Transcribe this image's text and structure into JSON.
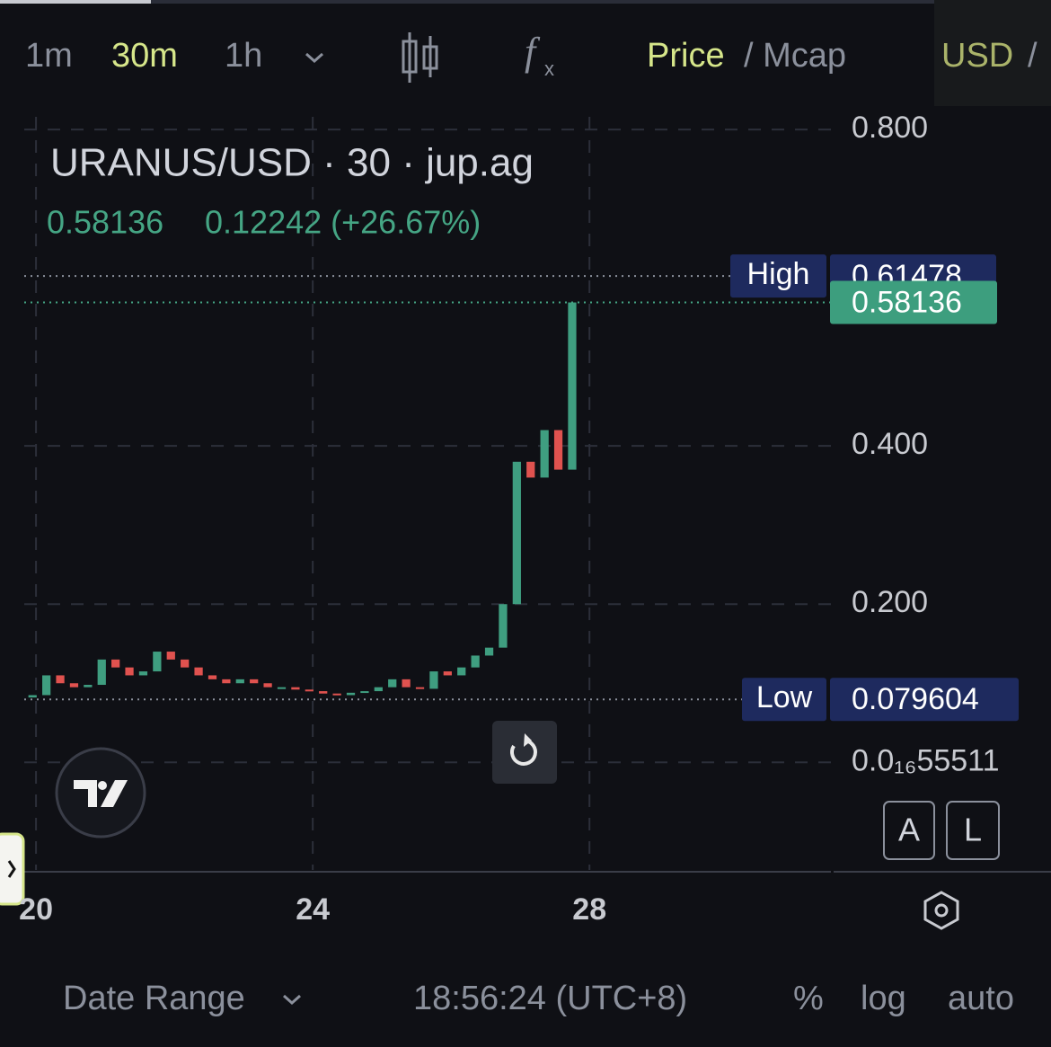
{
  "toolbar": {
    "intervals": [
      "1m",
      "30m",
      "1h"
    ],
    "price": "Price",
    "mcap": "/ Mcap",
    "currency": "USD",
    "sep": "/"
  },
  "legend": {
    "title": "URANUS/USD · 30 · jup.ag",
    "last": "0.58136",
    "change": "0.12242 (+26.67%)"
  },
  "chart_data": {
    "type": "candlestick",
    "up_color": "#3f9e80",
    "down_color": "#e0524f",
    "x": [
      19.95,
      20.15,
      20.35,
      20.55,
      20.75,
      20.95,
      21.15,
      21.35,
      21.55,
      21.75,
      21.95,
      22.15,
      22.35,
      22.55,
      22.75,
      22.95,
      23.15,
      23.35,
      23.55,
      23.75,
      23.95,
      24.15,
      24.35,
      24.55,
      24.75,
      24.95,
      25.15,
      25.35,
      25.55,
      25.75,
      25.95,
      26.15,
      26.35,
      26.55,
      26.75,
      26.95,
      27.15,
      27.35,
      27.55,
      27.75
    ],
    "open": [
      0.082,
      0.085,
      0.11,
      0.1,
      0.095,
      0.098,
      0.13,
      0.12,
      0.11,
      0.115,
      0.14,
      0.13,
      0.12,
      0.11,
      0.105,
      0.1,
      0.105,
      0.1,
      0.095,
      0.095,
      0.092,
      0.09,
      0.087,
      0.085,
      0.088,
      0.09,
      0.095,
      0.105,
      0.095,
      0.093,
      0.115,
      0.11,
      0.12,
      0.135,
      0.145,
      0.2,
      0.38,
      0.36,
      0.42,
      0.37
    ],
    "high": {
      "label": "High",
      "value": 0.61478
    },
    "low": {
      "label": "Low",
      "value": 0.079604
    },
    "close": [
      0.085,
      0.11,
      0.1,
      0.095,
      0.098,
      0.13,
      0.12,
      0.11,
      0.115,
      0.14,
      0.13,
      0.12,
      0.11,
      0.105,
      0.1,
      0.105,
      0.1,
      0.095,
      0.095,
      0.092,
      0.09,
      0.087,
      0.085,
      0.088,
      0.09,
      0.095,
      0.105,
      0.095,
      0.093,
      0.115,
      0.11,
      0.12,
      0.135,
      0.145,
      0.2,
      0.38,
      0.36,
      0.42,
      0.37,
      0.58136
    ],
    "xlim": [
      19.83,
      31.49
    ],
    "xticks": [
      20,
      24,
      28
    ],
    "ylim": [
      -0.136,
      0.816
    ],
    "yticks": [
      {
        "value": 0.8,
        "label": "0.800"
      },
      {
        "value": 0.4,
        "label": "0.400"
      },
      {
        "value": 0.2,
        "label": "0.200"
      },
      {
        "value": 5.5511e-17,
        "label": "0.0₁₆55511"
      }
    ],
    "grid": true,
    "last": {
      "value": 0.58136
    }
  },
  "scale_buttons": [
    "A",
    "L"
  ],
  "footer": {
    "date_range": "Date Range",
    "time": "18:56:24 (UTC+8)",
    "percent": "%",
    "log": "log",
    "auto": "auto"
  }
}
